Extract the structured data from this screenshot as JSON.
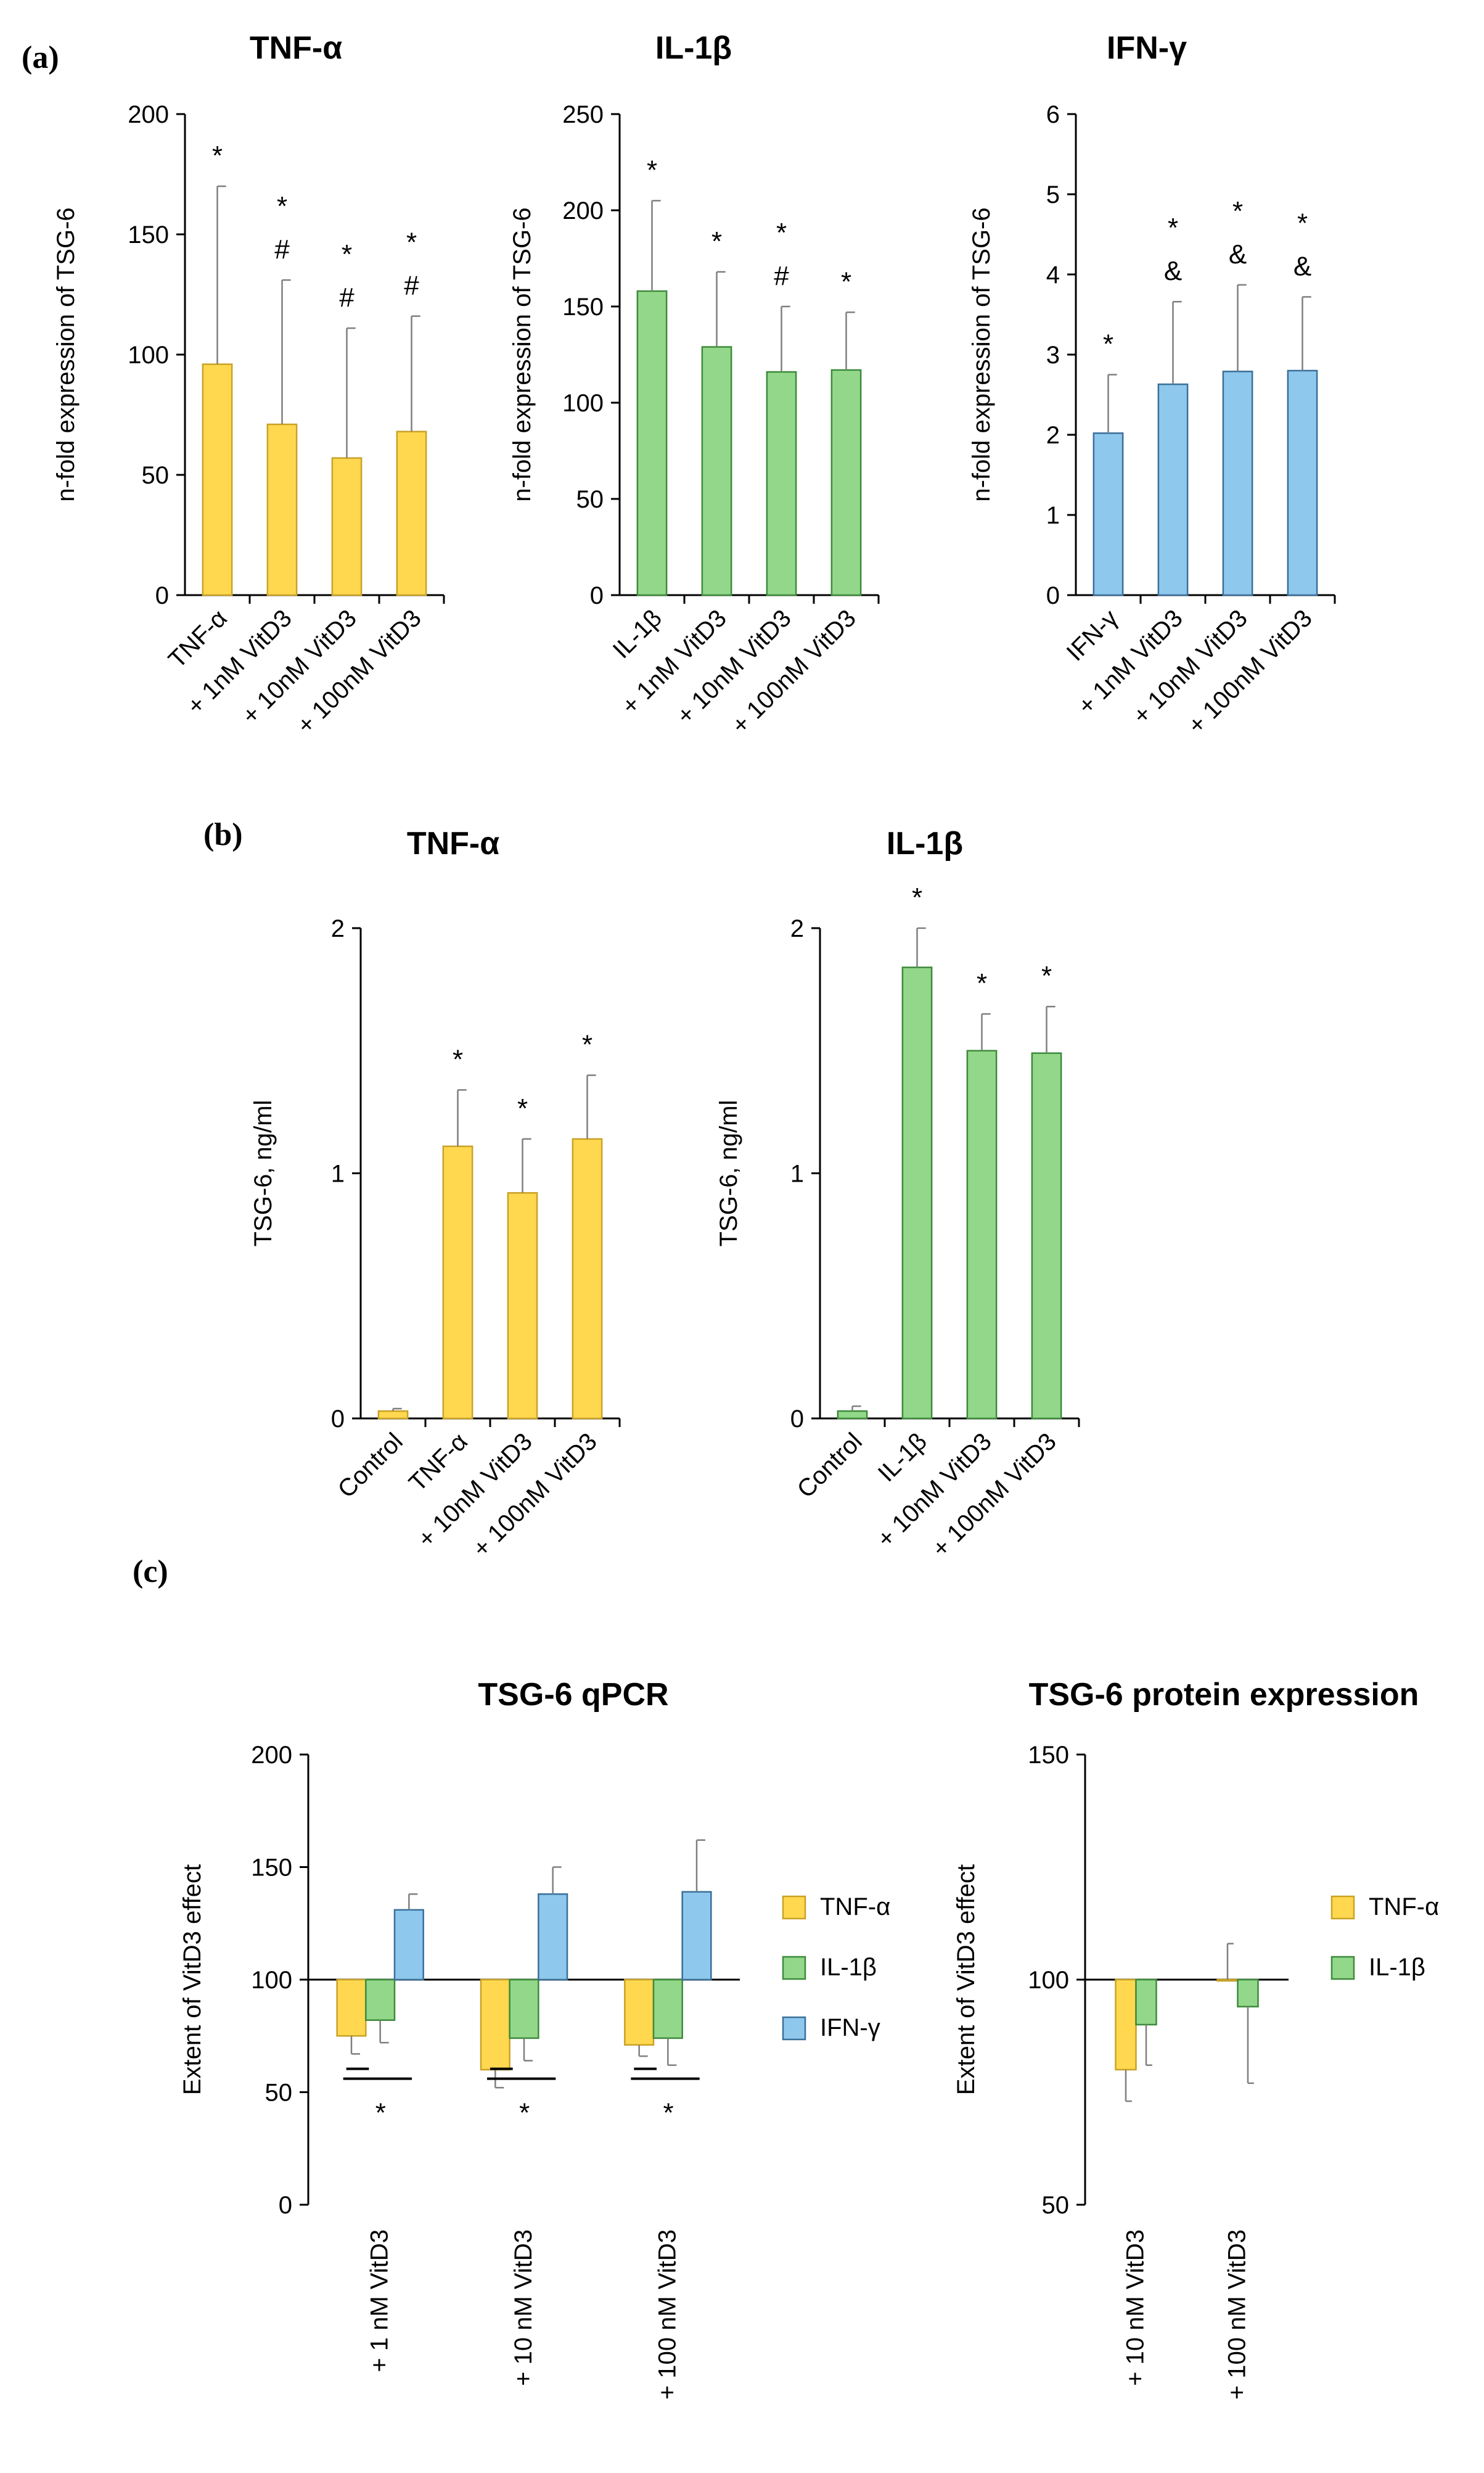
{
  "colors": {
    "yellow": "#FFD84F",
    "yellow_edge": "#C9A227",
    "green": "#93D88A",
    "green_edge": "#3D8A3A",
    "blue": "#8EC8EC",
    "blue_edge": "#3A6F9A",
    "axis": "#000000",
    "err": "#7F7F7F"
  },
  "panel_labels": [
    "(a)",
    "(b)",
    "(c)"
  ],
  "chart_data": [
    {
      "type": "bar",
      "title": "TNF-α",
      "ylabel": "n-fold expression of TSG-6",
      "ylim": [
        0,
        200
      ],
      "yticks": [
        0,
        50,
        100,
        150,
        200
      ],
      "categories": [
        "TNF-α",
        "+ 1nM VitD3",
        "+ 10nM VitD3",
        "+ 100nM VitD3"
      ],
      "series": [
        {
          "values": [
            96,
            71,
            57,
            68
          ],
          "errors": [
            74,
            60,
            54,
            48
          ],
          "color": "yellow"
        }
      ],
      "annotations": [
        [
          "*"
        ],
        [
          "*",
          "#"
        ],
        [
          "*",
          "#"
        ],
        [
          "*",
          "#"
        ]
      ]
    },
    {
      "type": "bar",
      "title": "IL-1β",
      "ylabel": "n-fold expression of TSG-6",
      "ylim": [
        0,
        250
      ],
      "yticks": [
        0,
        50,
        100,
        150,
        200,
        250
      ],
      "categories": [
        "IL-1β",
        "+ 1nM VitD3",
        "+ 10nM VitD3",
        "+ 100nM VitD3"
      ],
      "series": [
        {
          "values": [
            158,
            129,
            116,
            117
          ],
          "errors": [
            47,
            39,
            34,
            30
          ],
          "color": "green"
        }
      ],
      "annotations": [
        [
          "*"
        ],
        [
          "*"
        ],
        [
          "*",
          "#"
        ],
        [
          "*"
        ]
      ]
    },
    {
      "type": "bar",
      "title": "IFN-γ",
      "ylabel": "n-fold expression of TSG-6",
      "ylim": [
        0,
        6
      ],
      "yticks": [
        0,
        1,
        2,
        3,
        4,
        5,
        6
      ],
      "categories": [
        "IFN-γ",
        "+ 1nM VitD3",
        "+ 10nM VitD3",
        "+ 100nM VitD3"
      ],
      "series": [
        {
          "values": [
            2.02,
            2.63,
            2.79,
            2.8
          ],
          "errors": [
            0.73,
            1.03,
            1.08,
            0.92
          ],
          "color": "blue"
        }
      ],
      "annotations": [
        [
          "*"
        ],
        [
          "*",
          "&"
        ],
        [
          "*",
          "&"
        ],
        [
          "*",
          "&"
        ]
      ]
    },
    {
      "type": "bar",
      "title": "TNF-α",
      "ylabel": "TSG-6, ng/ml",
      "ylim": [
        0,
        2
      ],
      "yticks": [
        0,
        1,
        2
      ],
      "categories": [
        "Control",
        "TNF-α",
        "+ 10nM VitD3",
        "+ 100nM VitD3"
      ],
      "series": [
        {
          "values": [
            0.03,
            1.11,
            0.92,
            1.14
          ],
          "errors": [
            0.01,
            0.23,
            0.22,
            0.26
          ],
          "color": "yellow"
        }
      ],
      "annotations": [
        [],
        [
          "*"
        ],
        [
          "*"
        ],
        [
          "*"
        ]
      ]
    },
    {
      "type": "bar",
      "title": "IL-1β",
      "ylabel": "TSG-6, ng/ml",
      "ylim": [
        0,
        2
      ],
      "yticks": [
        0,
        1,
        2
      ],
      "categories": [
        "Control",
        "IL-1β",
        "+ 10nM VitD3",
        "+ 100nM VitD3"
      ],
      "series": [
        {
          "values": [
            0.03,
            1.84,
            1.5,
            1.49
          ],
          "errors": [
            0.02,
            0.16,
            0.15,
            0.19
          ],
          "color": "green"
        }
      ],
      "annotations": [
        [],
        [
          "*"
        ],
        [
          "*"
        ],
        [
          "*"
        ]
      ]
    },
    {
      "type": "bar",
      "title": "TSG-6 qPCR",
      "ylabel": "Extent of VitD3 effect",
      "ylim": [
        0,
        200
      ],
      "yticks": [
        0,
        50,
        100,
        150,
        200
      ],
      "baseline": 100,
      "categories": [
        "+ 1 nM VitD3",
        "+ 10 nM VitD3",
        "+ 100 nM VitD3"
      ],
      "series": [
        {
          "name": "TNF-α",
          "color": "yellow",
          "values": [
            75,
            60,
            71
          ],
          "errors": [
            8,
            8,
            5
          ]
        },
        {
          "name": "IL-1β",
          "color": "green",
          "values": [
            82,
            74,
            74
          ],
          "errors": [
            10,
            10,
            12
          ]
        },
        {
          "name": "IFN-γ",
          "color": "blue",
          "values": [
            131,
            138,
            139
          ],
          "errors": [
            7,
            12,
            23
          ]
        }
      ],
      "legend": "right",
      "significance": [
        "*",
        "*",
        "*"
      ]
    },
    {
      "type": "bar",
      "title": "TSG-6 protein expression",
      "ylabel": "Extent of VitD3 effect",
      "ylim": [
        50,
        150
      ],
      "yticks": [
        50,
        100,
        150
      ],
      "baseline": 100,
      "categories": [
        "+ 10 nM VitD3",
        "+ 100 nM VitD3"
      ],
      "series": [
        {
          "name": "TNF-α",
          "color": "yellow",
          "values": [
            80,
            100
          ],
          "errors": [
            7,
            8
          ]
        },
        {
          "name": "IL-1β",
          "color": "green",
          "values": [
            90,
            94
          ],
          "errors": [
            9,
            17
          ]
        }
      ],
      "legend": "right"
    }
  ]
}
